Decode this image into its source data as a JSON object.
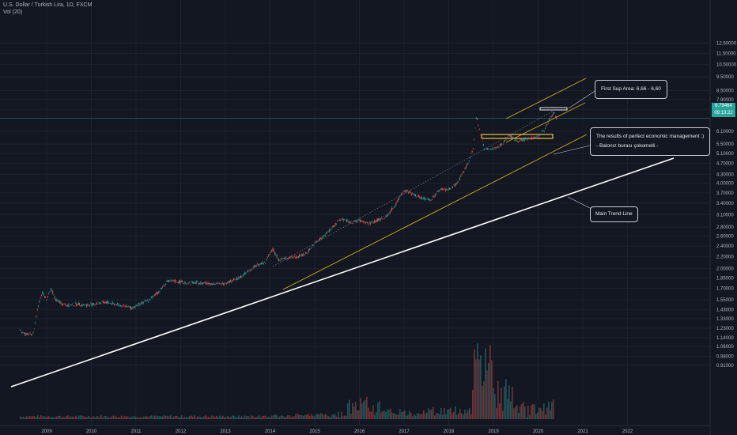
{
  "legend": {
    "symbol": "U.S. Dollar / Turkish Lira, 1D, FXCM",
    "volume": "Vol (20)"
  },
  "price_tag": {
    "value": "6.79464",
    "countdown": "09:13:22"
  },
  "annotations": {
    "first_sup": "First Sup Area: 6,66 - 6,60",
    "economic_title": "The results of perfect economic management :)",
    "economic_sub": "- Balonız burası çokomelli -",
    "trend": "Main Trend Line"
  },
  "colors": {
    "background": "#131722",
    "up": "#26a69a",
    "down": "#ef5350",
    "trend_line": "#ffffff",
    "channel": "#c9b11a",
    "support_box": "#f0c040"
  },
  "chart_data": {
    "type": "line",
    "title": "U.S. Dollar / Turkish Lira, 1D, FXCM",
    "xlabel": "",
    "ylabel": "",
    "y_scale": "log",
    "x_ticks": [
      "2009",
      "2010",
      "2011",
      "2012",
      "2013",
      "2014",
      "2015",
      "2016",
      "2017",
      "2018",
      "2019",
      "2020",
      "2021",
      "2022"
    ],
    "y_ticks": [
      "12.50000",
      "11.50000",
      "10.50000",
      "9.50000",
      "8.50000",
      "7.90000",
      "7.30000",
      "6.10000",
      "5.50000",
      "5.10000",
      "4.70000",
      "4.30000",
      "4.00000",
      "3.70000",
      "3.40000",
      "3.10000",
      "2.80000",
      "2.60000",
      "2.40000",
      "2.20000",
      "2.00000",
      "1.85000",
      "1.70000",
      "1.55000",
      "1.43000",
      "1.33000",
      "1.23000",
      "1.14000",
      "1.06000",
      "0.98000",
      "0.91000"
    ],
    "series": [
      {
        "name": "",
        "x": [
          2008.4,
          2008.55,
          2008.7,
          2008.8,
          2008.9,
          2009.0,
          2009.1,
          2009.2,
          2009.35,
          2009.5,
          2009.7,
          2009.9,
          2010.1,
          2010.3,
          2010.5,
          2010.7,
          2010.9,
          2011.1,
          2011.3,
          2011.5,
          2011.7,
          2011.9,
          2012.1,
          2012.3,
          2012.5,
          2012.7,
          2012.9,
          2013.1,
          2013.3,
          2013.5,
          2013.7,
          2013.9,
          2014.05,
          2014.2,
          2014.4,
          2014.6,
          2014.8,
          2015.0,
          2015.2,
          2015.4,
          2015.6,
          2015.8,
          2016.0,
          2016.2,
          2016.4,
          2016.6,
          2016.8,
          2017.0,
          2017.2,
          2017.4,
          2017.6,
          2017.8,
          2018.0,
          2018.2,
          2018.4,
          2018.55,
          2018.62,
          2018.7,
          2018.8,
          2018.9,
          2019.0,
          2019.2,
          2019.35,
          2019.5,
          2019.7,
          2019.9,
          2020.0,
          2020.15,
          2020.25,
          2020.35,
          2020.42
        ],
        "values": [
          1.2,
          1.17,
          1.18,
          1.45,
          1.65,
          1.55,
          1.7,
          1.55,
          1.5,
          1.48,
          1.5,
          1.48,
          1.5,
          1.52,
          1.5,
          1.48,
          1.45,
          1.5,
          1.55,
          1.65,
          1.8,
          1.8,
          1.78,
          1.78,
          1.78,
          1.77,
          1.76,
          1.8,
          1.85,
          1.95,
          2.05,
          2.1,
          2.35,
          2.15,
          2.18,
          2.2,
          2.25,
          2.45,
          2.6,
          2.8,
          3.0,
          2.9,
          2.95,
          2.88,
          2.95,
          3.05,
          3.35,
          3.8,
          3.65,
          3.55,
          3.5,
          3.8,
          3.8,
          4.0,
          4.6,
          5.3,
          6.9,
          6.0,
          5.3,
          5.25,
          5.3,
          5.5,
          5.95,
          5.65,
          5.7,
          5.8,
          5.85,
          6.2,
          6.7,
          7.1,
          6.79
        ]
      }
    ],
    "last_value": 6.79464,
    "grid": true
  }
}
